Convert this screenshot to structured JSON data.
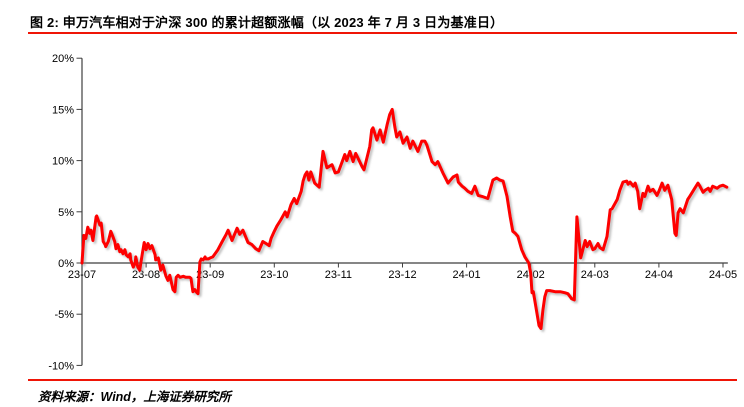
{
  "title": "图 2: 申万汽车相对于沪深 300 的累计超额涨幅（以 2023 年 7 月 3 日为基准日）",
  "source": "资料来源：Wind，上海证券研究所",
  "colors": {
    "line": "#fe0000",
    "rule": "#ef1507",
    "axis": "#3f3f3f",
    "text": "#000000",
    "background": "#ffffff"
  },
  "chart_data": {
    "type": "line",
    "title": "申万汽车相对于沪深 300 的累计超额涨幅（以 2023 年 7 月 3 日为基准日）",
    "xlabel": "",
    "ylabel": "",
    "grid": false,
    "legend_position": "none",
    "ylim": [
      -10,
      20
    ],
    "y_ticks": {
      "values": [
        20,
        15,
        10,
        5,
        0,
        -5,
        -10
      ],
      "labels": [
        "20%",
        "15%",
        "10%",
        "5%",
        "0%",
        "-5%",
        "-10%"
      ]
    },
    "x_ticks": [
      "23-07",
      "23-08",
      "23-09",
      "23-10",
      "23-11",
      "23-12",
      "24-01",
      "24-02",
      "24-03",
      "24-04",
      "24-05"
    ],
    "x_unit": "months since 2023-07",
    "series": [
      {
        "points": [
          [
            0.0,
            0.0
          ],
          [
            0.03,
            2.7
          ],
          [
            0.06,
            2.4
          ],
          [
            0.09,
            3.5
          ],
          [
            0.12,
            2.9
          ],
          [
            0.14,
            3.2
          ],
          [
            0.17,
            2.2
          ],
          [
            0.22,
            4.5
          ],
          [
            0.23,
            4.6
          ],
          [
            0.28,
            3.7
          ],
          [
            0.3,
            3.9
          ],
          [
            0.33,
            2.1
          ],
          [
            0.36,
            1.8
          ],
          [
            0.37,
            1.6
          ],
          [
            0.41,
            2.1
          ],
          [
            0.45,
            3.1
          ],
          [
            0.48,
            2.6
          ],
          [
            0.51,
            2.1
          ],
          [
            0.53,
            1.4
          ],
          [
            0.56,
            1.8
          ],
          [
            0.59,
            1.1
          ],
          [
            0.61,
            1.3
          ],
          [
            0.64,
            0.9
          ],
          [
            0.67,
            1.3
          ],
          [
            0.69,
            0.8
          ],
          [
            0.72,
            0.6
          ],
          [
            0.75,
            0.9
          ],
          [
            0.76,
            0.3
          ],
          [
            0.8,
            -0.4
          ],
          [
            0.83,
            0.0
          ],
          [
            0.84,
            0.6
          ],
          [
            0.87,
            -0.4
          ],
          [
            0.9,
            -0.7
          ],
          [
            0.94,
            0.9
          ],
          [
            0.97,
            2.0
          ],
          [
            1.0,
            1.3
          ],
          [
            1.03,
            1.9
          ],
          [
            1.06,
            1.4
          ],
          [
            1.09,
            1.7
          ],
          [
            1.14,
            0.8
          ],
          [
            1.15,
            0.3
          ],
          [
            1.19,
            0.5
          ],
          [
            1.22,
            -0.4
          ],
          [
            1.23,
            -0.7
          ],
          [
            1.26,
            -0.2
          ],
          [
            1.31,
            -1.3
          ],
          [
            1.34,
            -1.7
          ],
          [
            1.37,
            -1.2
          ],
          [
            1.42,
            -2.6
          ],
          [
            1.45,
            -2.8
          ],
          [
            1.47,
            -1.4
          ],
          [
            1.5,
            -1.2
          ],
          [
            1.53,
            -1.4
          ],
          [
            1.58,
            -1.3
          ],
          [
            1.62,
            -1.4
          ],
          [
            1.68,
            -1.4
          ],
          [
            1.7,
            -1.5
          ],
          [
            1.73,
            -2.8
          ],
          [
            1.76,
            -2.6
          ],
          [
            1.78,
            -2.8
          ],
          [
            1.81,
            -3.0
          ],
          [
            1.84,
            0.1
          ],
          [
            1.86,
            0.4
          ],
          [
            1.89,
            0.3
          ],
          [
            1.92,
            0.6
          ],
          [
            1.93,
            0.4
          ],
          [
            1.97,
            0.4
          ],
          [
            2.0,
            0.5
          ],
          [
            2.04,
            0.6
          ],
          [
            2.12,
            1.3
          ],
          [
            2.18,
            2.0
          ],
          [
            2.25,
            2.8
          ],
          [
            2.28,
            3.2
          ],
          [
            2.34,
            2.2
          ],
          [
            2.42,
            3.4
          ],
          [
            2.46,
            2.8
          ],
          [
            2.51,
            3.2
          ],
          [
            2.59,
            2.0
          ],
          [
            2.65,
            1.8
          ],
          [
            2.71,
            1.4
          ],
          [
            2.76,
            1.2
          ],
          [
            2.82,
            2.1
          ],
          [
            2.87,
            1.9
          ],
          [
            2.92,
            1.7
          ],
          [
            2.95,
            2.4
          ],
          [
            3.0,
            3.1
          ],
          [
            3.04,
            3.6
          ],
          [
            3.1,
            4.2
          ],
          [
            3.17,
            5.0
          ],
          [
            3.2,
            4.5
          ],
          [
            3.26,
            5.7
          ],
          [
            3.31,
            6.3
          ],
          [
            3.35,
            5.8
          ],
          [
            3.42,
            7.0
          ],
          [
            3.45,
            8.0
          ],
          [
            3.48,
            8.6
          ],
          [
            3.51,
            8.9
          ],
          [
            3.54,
            8.1
          ],
          [
            3.57,
            8.9
          ],
          [
            3.63,
            7.8
          ],
          [
            3.7,
            7.4
          ],
          [
            3.76,
            10.9
          ],
          [
            3.82,
            9.3
          ],
          [
            3.9,
            9.6
          ],
          [
            3.95,
            8.8
          ],
          [
            4.0,
            8.9
          ],
          [
            4.06,
            9.9
          ],
          [
            4.1,
            10.6
          ],
          [
            4.13,
            10.0
          ],
          [
            4.18,
            10.9
          ],
          [
            4.23,
            9.9
          ],
          [
            4.27,
            10.7
          ],
          [
            4.37,
            9.4
          ],
          [
            4.4,
            9.1
          ],
          [
            4.49,
            11.4
          ],
          [
            4.52,
            13.0
          ],
          [
            4.54,
            13.2
          ],
          [
            4.6,
            12.0
          ],
          [
            4.65,
            13.0
          ],
          [
            4.7,
            11.8
          ],
          [
            4.76,
            13.5
          ],
          [
            4.8,
            14.5
          ],
          [
            4.84,
            15.0
          ],
          [
            4.88,
            13.3
          ],
          [
            4.91,
            12.3
          ],
          [
            4.96,
            12.8
          ],
          [
            5.01,
            11.7
          ],
          [
            5.07,
            12.3
          ],
          [
            5.12,
            11.2
          ],
          [
            5.16,
            11.9
          ],
          [
            5.24,
            10.9
          ],
          [
            5.3,
            11.9
          ],
          [
            5.35,
            11.9
          ],
          [
            5.38,
            11.5
          ],
          [
            5.46,
            9.9
          ],
          [
            5.51,
            9.6
          ],
          [
            5.55,
            9.9
          ],
          [
            5.63,
            8.8
          ],
          [
            5.71,
            7.8
          ],
          [
            5.79,
            8.4
          ],
          [
            5.85,
            8.6
          ],
          [
            5.87,
            7.9
          ],
          [
            5.93,
            7.5
          ],
          [
            5.97,
            7.3
          ],
          [
            6.02,
            7.0
          ],
          [
            6.08,
            6.8
          ],
          [
            6.13,
            7.5
          ],
          [
            6.18,
            6.6
          ],
          [
            6.24,
            6.5
          ],
          [
            6.33,
            6.3
          ],
          [
            6.41,
            8.1
          ],
          [
            6.47,
            8.3
          ],
          [
            6.52,
            8.1
          ],
          [
            6.57,
            8.0
          ],
          [
            6.63,
            6.5
          ],
          [
            6.68,
            4.5
          ],
          [
            6.72,
            3.1
          ],
          [
            6.76,
            2.9
          ],
          [
            6.8,
            2.6
          ],
          [
            6.86,
            1.3
          ],
          [
            6.91,
            0.6
          ],
          [
            6.97,
            0.0
          ],
          [
            7.0,
            -1.0
          ],
          [
            7.02,
            -2.9
          ],
          [
            7.04,
            -2.8
          ],
          [
            7.07,
            -3.9
          ],
          [
            7.13,
            -6.1
          ],
          [
            7.16,
            -6.4
          ],
          [
            7.19,
            -4.6
          ],
          [
            7.22,
            -3.3
          ],
          [
            7.25,
            -2.7
          ],
          [
            7.3,
            -2.7
          ],
          [
            7.38,
            -2.8
          ],
          [
            7.46,
            -2.8
          ],
          [
            7.53,
            -2.9
          ],
          [
            7.58,
            -3.0
          ],
          [
            7.64,
            -3.5
          ],
          [
            7.68,
            -3.6
          ],
          [
            7.72,
            4.5
          ],
          [
            7.78,
            0.5
          ],
          [
            7.85,
            2.2
          ],
          [
            7.88,
            1.6
          ],
          [
            7.92,
            2.1
          ],
          [
            7.97,
            1.3
          ],
          [
            8.0,
            1.4
          ],
          [
            8.05,
            1.9
          ],
          [
            8.08,
            1.5
          ],
          [
            8.13,
            1.3
          ],
          [
            8.19,
            2.6
          ],
          [
            8.24,
            5.2
          ],
          [
            8.27,
            5.3
          ],
          [
            8.35,
            6.2
          ],
          [
            8.39,
            7.1
          ],
          [
            8.44,
            7.9
          ],
          [
            8.5,
            8.0
          ],
          [
            8.52,
            7.7
          ],
          [
            8.55,
            7.9
          ],
          [
            8.6,
            7.5
          ],
          [
            8.63,
            7.8
          ],
          [
            8.67,
            7.0
          ],
          [
            8.7,
            5.3
          ],
          [
            8.75,
            6.8
          ],
          [
            8.78,
            6.5
          ],
          [
            8.83,
            7.5
          ],
          [
            8.86,
            7.0
          ],
          [
            8.91,
            7.2
          ],
          [
            8.97,
            6.6
          ],
          [
            9.0,
            7.0
          ],
          [
            9.05,
            7.8
          ],
          [
            9.09,
            7.1
          ],
          [
            9.14,
            7.6
          ],
          [
            9.2,
            6.2
          ],
          [
            9.25,
            2.9
          ],
          [
            9.27,
            2.7
          ],
          [
            9.3,
            4.9
          ],
          [
            9.33,
            5.3
          ],
          [
            9.38,
            4.9
          ],
          [
            9.45,
            6.2
          ],
          [
            9.48,
            6.5
          ],
          [
            9.56,
            7.3
          ],
          [
            9.61,
            7.8
          ],
          [
            9.64,
            7.5
          ],
          [
            9.69,
            6.9
          ],
          [
            9.72,
            7.1
          ],
          [
            9.77,
            7.3
          ],
          [
            9.8,
            7.0
          ],
          [
            9.84,
            7.5
          ],
          [
            9.91,
            7.3
          ],
          [
            9.95,
            7.5
          ],
          [
            10.0,
            7.6
          ],
          [
            10.06,
            7.4
          ]
        ]
      }
    ]
  }
}
